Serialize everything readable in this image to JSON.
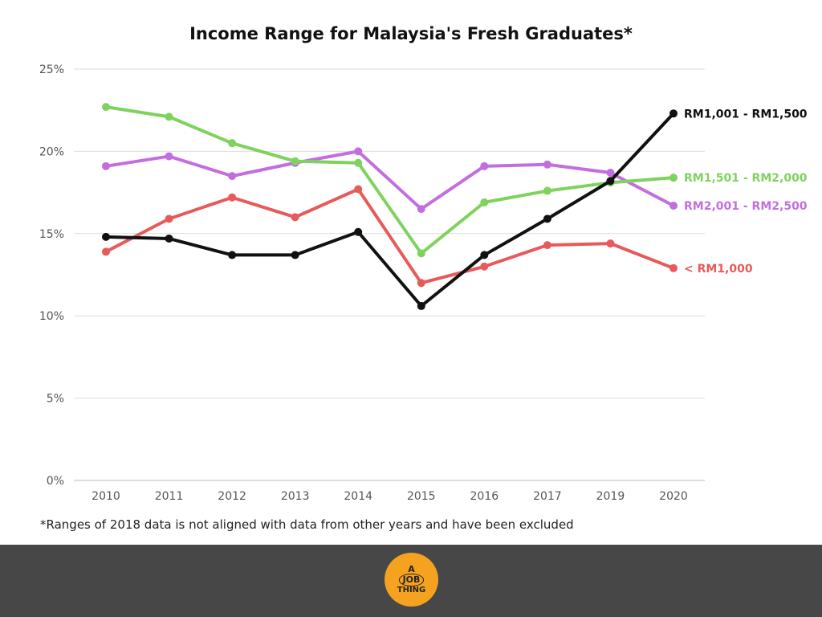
{
  "chart_data": {
    "type": "line",
    "title": "Income Range for Malaysia's Fresh Graduates*",
    "categories": [
      "2010",
      "2011",
      "2012",
      "2013",
      "2014",
      "2015",
      "2016",
      "2017",
      "2019",
      "2020"
    ],
    "yticks": [
      "0%",
      "5%",
      "10%",
      "15%",
      "20%",
      "25%"
    ],
    "ylim": [
      0,
      25
    ],
    "grid": true,
    "series": [
      {
        "name": "< RM1,000",
        "color": "#e85a5a",
        "values": [
          13.9,
          15.9,
          17.2,
          16.0,
          17.7,
          12.0,
          13.0,
          14.3,
          14.4,
          12.9
        ]
      },
      {
        "name": "RM2,001 - RM2,500",
        "color": "#c36ee0",
        "values": [
          19.1,
          19.7,
          18.5,
          19.3,
          20.0,
          16.5,
          19.1,
          19.2,
          18.7,
          16.7
        ]
      },
      {
        "name": "RM1,501 - RM2,000",
        "color": "#7ed35c",
        "values": [
          22.7,
          22.1,
          20.5,
          19.4,
          19.3,
          13.8,
          16.9,
          17.6,
          18.1,
          18.4
        ]
      },
      {
        "name": "RM1,001 - RM1,500",
        "color": "#111111",
        "values": [
          14.8,
          14.7,
          13.7,
          13.7,
          15.1,
          10.6,
          13.7,
          15.9,
          18.2,
          22.3
        ]
      }
    ]
  },
  "footnote": "*Ranges of 2018 data is not aligned with data from other years and have been excluded",
  "logo": {
    "line1": "A",
    "line2": "JOB",
    "line3": "THING"
  }
}
